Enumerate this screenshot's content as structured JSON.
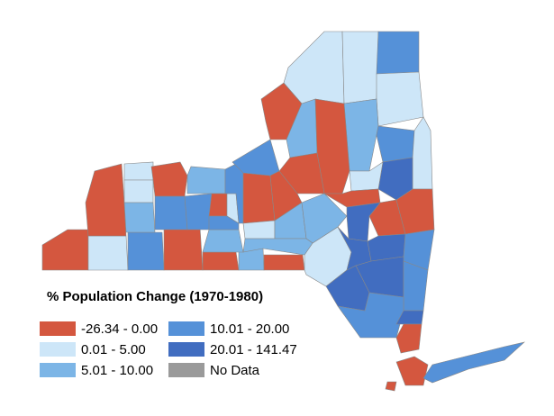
{
  "legend": {
    "title": "% Population Change (1970-1980)",
    "items": [
      {
        "label": "-26.34 - 0.00",
        "color": "#d4573f"
      },
      {
        "label": "0.01 - 5.00",
        "color": "#cde6f8"
      },
      {
        "label": "5.01 - 10.00",
        "color": "#7cb5e6"
      },
      {
        "label": "10.01 - 20.00",
        "color": "#5591d8"
      },
      {
        "label": "20.01 - 141.47",
        "color": "#416dc0"
      },
      {
        "label": "No Data",
        "color": "#9a9a9a"
      }
    ]
  }
}
